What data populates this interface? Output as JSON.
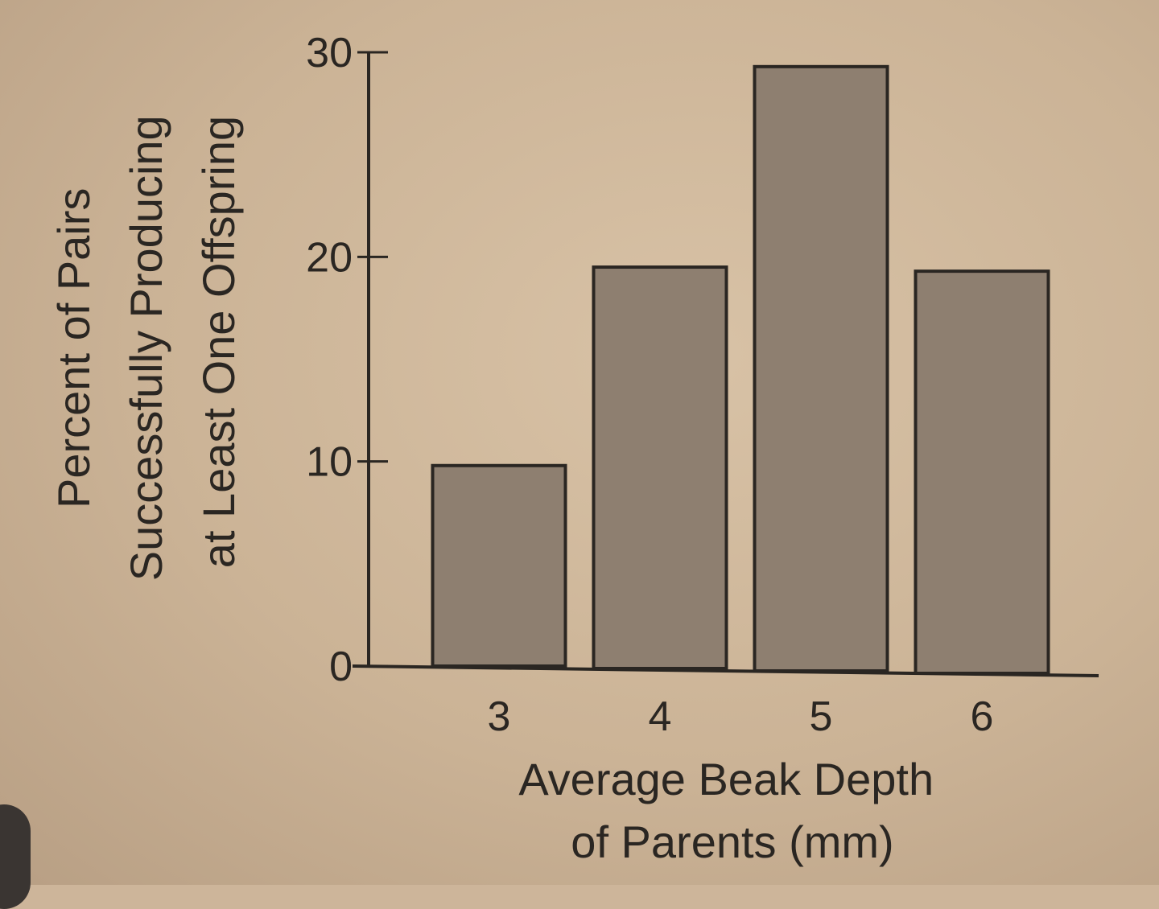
{
  "chart_data": {
    "type": "bar",
    "categories": [
      "3",
      "4",
      "5",
      "6"
    ],
    "values": [
      9.8,
      19.5,
      29.3,
      19.3
    ],
    "title": "",
    "xlabel_lines": [
      "Average Beak Depth",
      "of Parents (mm)"
    ],
    "ylabel_lines": [
      "Percent of Pairs",
      "Successfully Producing",
      "at Least One Offspring"
    ],
    "ylim": [
      0,
      30
    ],
    "yticks": [
      0,
      10,
      20,
      30
    ],
    "ytick_labels": [
      "0",
      "10",
      "20",
      "30"
    ],
    "grid": false,
    "bar_color": "#8e7f70",
    "background_color": "#cdb59a"
  }
}
